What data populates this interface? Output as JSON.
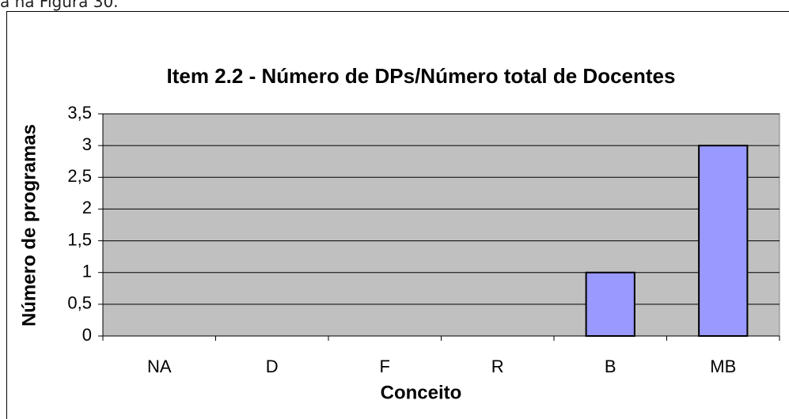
{
  "text_above": "a na Figura 30.",
  "chart_data": {
    "type": "bar",
    "title": "Item 2.2 - Número de DPs/Número total de Docentes",
    "x_label": "Conceito",
    "y_label": "Número de programas",
    "categories": [
      "NA",
      "D",
      "F",
      "R",
      "B",
      "MB"
    ],
    "values": [
      0,
      0,
      0,
      0,
      1,
      3
    ],
    "color": "#9999ff",
    "ylim": [
      0,
      3.5
    ],
    "yticks": [
      0,
      {
        "value": 0.5,
        "label": "0,5"
      },
      1,
      {
        "value": 1.5,
        "label": "1,5"
      },
      2,
      {
        "value": 2.5,
        "label": "2,5"
      },
      3,
      {
        "value": 3.5,
        "label": "3,5"
      }
    ],
    "grid": true
  }
}
